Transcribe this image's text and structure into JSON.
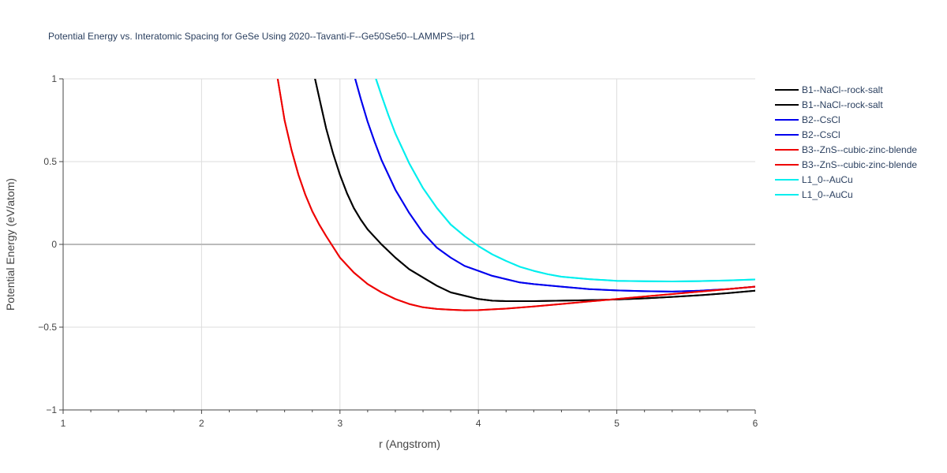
{
  "chart_data": {
    "type": "line",
    "title": "Potential Energy vs. Interatomic Spacing for GeSe Using 2020--Tavanti-F--Ge50Se50--LAMMPS--ipr1",
    "xlabel": "r (Angstrom)",
    "ylabel": "Potential Energy (eV/atom)",
    "xlim": [
      1,
      6
    ],
    "ylim": [
      -1,
      1
    ],
    "xticks": [
      1,
      2,
      3,
      4,
      5,
      6
    ],
    "xtick_labels": [
      "1",
      "2",
      "3",
      "4",
      "5",
      "6"
    ],
    "yticks": [
      -1,
      -0.5,
      0,
      0.5,
      1
    ],
    "ytick_labels": [
      "−1",
      "−0.5",
      "0",
      "0.5",
      "1"
    ],
    "grid": true,
    "legend_position": "top-right",
    "series": [
      {
        "name": "B1--NaCl--rock-salt",
        "color": "#000000",
        "x": [
          2.82,
          2.86,
          2.9,
          2.95,
          3.0,
          3.05,
          3.1,
          3.15,
          3.2,
          3.3,
          3.4,
          3.5,
          3.6,
          3.7,
          3.8,
          3.9,
          4.0,
          4.1,
          4.2,
          4.4,
          4.6,
          4.8,
          5.0,
          5.2,
          5.4,
          5.6,
          5.8,
          6.0
        ],
        "y": [
          1.0,
          0.85,
          0.7,
          0.55,
          0.42,
          0.31,
          0.22,
          0.15,
          0.09,
          0.0,
          -0.08,
          -0.15,
          -0.2,
          -0.25,
          -0.29,
          -0.31,
          -0.33,
          -0.34,
          -0.343,
          -0.343,
          -0.34,
          -0.337,
          -0.333,
          -0.326,
          -0.317,
          -0.307,
          -0.295,
          -0.28
        ]
      },
      {
        "name": "B1--NaCl--rock-salt",
        "color": "#000000",
        "x": [
          2.82,
          2.86,
          2.9,
          2.95,
          3.0,
          3.05,
          3.1,
          3.15,
          3.2,
          3.3,
          3.4,
          3.5,
          3.6,
          3.7,
          3.8,
          3.9,
          4.0,
          4.1,
          4.2,
          4.4,
          4.6,
          4.8,
          5.0,
          5.2,
          5.4,
          5.6,
          5.8,
          6.0
        ],
        "y": [
          1.0,
          0.85,
          0.7,
          0.55,
          0.42,
          0.31,
          0.22,
          0.15,
          0.09,
          0.0,
          -0.08,
          -0.15,
          -0.2,
          -0.25,
          -0.29,
          -0.31,
          -0.33,
          -0.34,
          -0.343,
          -0.343,
          -0.34,
          -0.337,
          -0.333,
          -0.326,
          -0.317,
          -0.307,
          -0.295,
          -0.28
        ]
      },
      {
        "name": "B2--CsCl",
        "color": "#0000ee",
        "x": [
          3.11,
          3.15,
          3.2,
          3.25,
          3.3,
          3.4,
          3.5,
          3.6,
          3.7,
          3.8,
          3.9,
          4.0,
          4.1,
          4.2,
          4.3,
          4.4,
          4.6,
          4.8,
          5.0,
          5.2,
          5.4,
          5.6,
          5.8,
          6.0
        ],
        "y": [
          1.0,
          0.88,
          0.74,
          0.62,
          0.51,
          0.33,
          0.19,
          0.07,
          -0.02,
          -0.08,
          -0.13,
          -0.16,
          -0.19,
          -0.21,
          -0.23,
          -0.24,
          -0.255,
          -0.27,
          -0.278,
          -0.283,
          -0.285,
          -0.28,
          -0.27,
          -0.255
        ]
      },
      {
        "name": "B2--CsCl",
        "color": "#0000ee",
        "x": [
          3.11,
          3.15,
          3.2,
          3.25,
          3.3,
          3.4,
          3.5,
          3.6,
          3.7,
          3.8,
          3.9,
          4.0,
          4.1,
          4.2,
          4.3,
          4.4,
          4.6,
          4.8,
          5.0,
          5.2,
          5.4,
          5.6,
          5.8,
          6.0
        ],
        "y": [
          1.0,
          0.88,
          0.74,
          0.62,
          0.51,
          0.33,
          0.19,
          0.07,
          -0.02,
          -0.08,
          -0.13,
          -0.16,
          -0.19,
          -0.21,
          -0.23,
          -0.24,
          -0.255,
          -0.27,
          -0.278,
          -0.283,
          -0.285,
          -0.28,
          -0.27,
          -0.255
        ]
      },
      {
        "name": "B3--ZnS--cubic-zinc-blende",
        "color": "#ee0000",
        "x": [
          2.55,
          2.6,
          2.65,
          2.7,
          2.75,
          2.8,
          2.85,
          2.9,
          3.0,
          3.1,
          3.2,
          3.3,
          3.4,
          3.5,
          3.6,
          3.7,
          3.8,
          3.9,
          4.0,
          4.2,
          4.4,
          4.6,
          4.8,
          5.0,
          5.2,
          5.4,
          5.6,
          5.8,
          6.0
        ],
        "y": [
          1.0,
          0.75,
          0.57,
          0.42,
          0.3,
          0.2,
          0.12,
          0.05,
          -0.08,
          -0.17,
          -0.24,
          -0.29,
          -0.33,
          -0.36,
          -0.38,
          -0.39,
          -0.395,
          -0.398,
          -0.397,
          -0.388,
          -0.375,
          -0.36,
          -0.345,
          -0.33,
          -0.315,
          -0.3,
          -0.285,
          -0.27,
          -0.255
        ]
      },
      {
        "name": "B3--ZnS--cubic-zinc-blende",
        "color": "#ee0000",
        "x": [
          2.55,
          2.6,
          2.65,
          2.7,
          2.75,
          2.8,
          2.85,
          2.9,
          3.0,
          3.1,
          3.2,
          3.3,
          3.4,
          3.5,
          3.6,
          3.7,
          3.8,
          3.9,
          4.0,
          4.2,
          4.4,
          4.6,
          4.8,
          5.0,
          5.2,
          5.4,
          5.6,
          5.8,
          6.0
        ],
        "y": [
          1.0,
          0.75,
          0.57,
          0.42,
          0.3,
          0.2,
          0.12,
          0.05,
          -0.08,
          -0.17,
          -0.24,
          -0.29,
          -0.33,
          -0.36,
          -0.38,
          -0.39,
          -0.395,
          -0.398,
          -0.397,
          -0.388,
          -0.375,
          -0.36,
          -0.345,
          -0.33,
          -0.315,
          -0.3,
          -0.285,
          -0.27,
          -0.255
        ]
      },
      {
        "name": "L1_0--AuCu",
        "color": "#00eeee",
        "x": [
          3.26,
          3.3,
          3.35,
          3.4,
          3.5,
          3.6,
          3.7,
          3.8,
          3.9,
          4.0,
          4.1,
          4.2,
          4.3,
          4.4,
          4.5,
          4.6,
          4.8,
          5.0,
          5.2,
          5.4,
          5.6,
          5.8,
          6.0
        ],
        "y": [
          1.0,
          0.9,
          0.78,
          0.67,
          0.49,
          0.34,
          0.22,
          0.12,
          0.05,
          -0.01,
          -0.06,
          -0.1,
          -0.135,
          -0.16,
          -0.18,
          -0.195,
          -0.21,
          -0.22,
          -0.223,
          -0.224,
          -0.222,
          -0.218,
          -0.212
        ]
      },
      {
        "name": "L1_0--AuCu",
        "color": "#00eeee",
        "x": [
          3.26,
          3.3,
          3.35,
          3.4,
          3.5,
          3.6,
          3.7,
          3.8,
          3.9,
          4.0,
          4.1,
          4.2,
          4.3,
          4.4,
          4.5,
          4.6,
          4.8,
          5.0,
          5.2,
          5.4,
          5.6,
          5.8,
          6.0
        ],
        "y": [
          1.0,
          0.9,
          0.78,
          0.67,
          0.49,
          0.34,
          0.22,
          0.12,
          0.05,
          -0.01,
          -0.06,
          -0.1,
          -0.135,
          -0.16,
          -0.18,
          -0.195,
          -0.21,
          -0.22,
          -0.223,
          -0.224,
          -0.222,
          -0.218,
          -0.212
        ]
      }
    ]
  }
}
